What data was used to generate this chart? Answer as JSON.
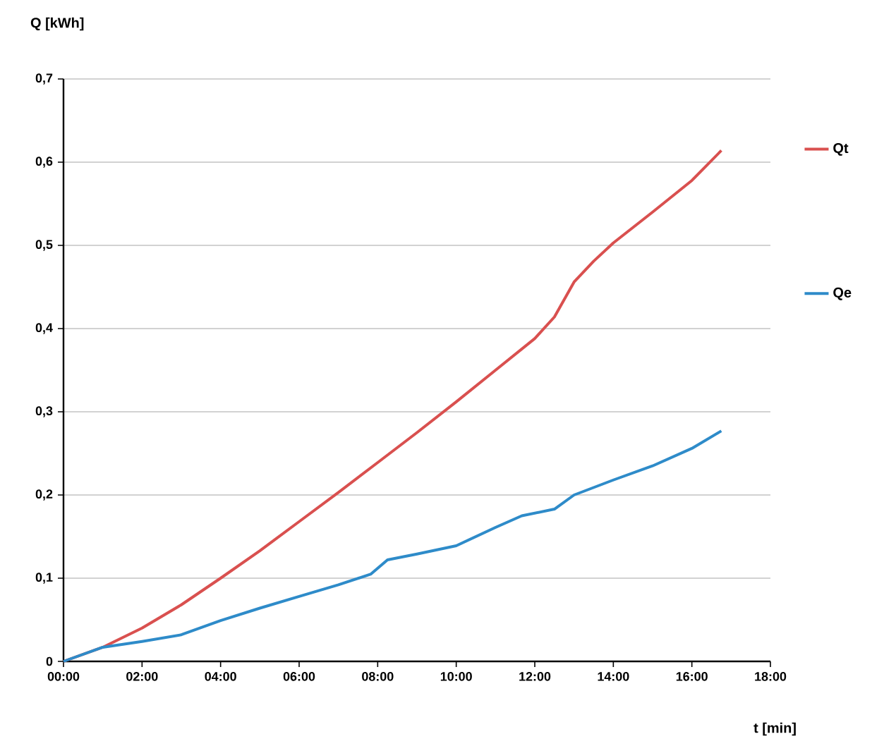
{
  "chart_data": {
    "type": "line",
    "xlabel": "t [min]",
    "ylabel": "Q [kWh]",
    "xlim": [
      0,
      18
    ],
    "ylim": [
      0,
      0.7
    ],
    "xticks": [
      {
        "value": 0,
        "label": "00:00"
      },
      {
        "value": 2,
        "label": "02:00"
      },
      {
        "value": 4,
        "label": "04:00"
      },
      {
        "value": 6,
        "label": "06:00"
      },
      {
        "value": 8,
        "label": "08:00"
      },
      {
        "value": 10,
        "label": "10:00"
      },
      {
        "value": 12,
        "label": "12:00"
      },
      {
        "value": 14,
        "label": "14:00"
      },
      {
        "value": 16,
        "label": "16:00"
      },
      {
        "value": 18,
        "label": "18:00"
      }
    ],
    "yticks": [
      0,
      {
        "value": 0.1,
        "label": "0,1"
      },
      {
        "value": 0.2,
        "label": "0,2"
      },
      {
        "value": 0.3,
        "label": "0,3"
      },
      {
        "value": 0.4,
        "label": "0,4"
      },
      {
        "value": 0.5,
        "label": "0,5"
      },
      {
        "value": 0.6,
        "label": "0,6"
      },
      {
        "value": 0.7,
        "label": "0,7"
      }
    ],
    "grid": "y",
    "legend": "right",
    "marker": "none",
    "line_style": "solid",
    "series": [
      {
        "name": "Qt",
        "color": "#d9504f",
        "x": [
          0,
          1,
          2,
          3,
          4,
          5,
          6,
          7,
          8,
          9,
          10,
          11,
          12,
          12.5,
          13,
          13.5,
          14,
          15,
          16,
          16.75
        ],
        "values": [
          0,
          0.017,
          0.04,
          0.068,
          0.1,
          0.133,
          0.168,
          0.203,
          0.239,
          0.275,
          0.312,
          0.35,
          0.388,
          0.414,
          0.456,
          0.481,
          0.503,
          0.54,
          0.578,
          0.614
        ]
      },
      {
        "name": "Qe",
        "color": "#2e8bc9",
        "x": [
          0,
          1,
          2,
          3,
          4,
          5,
          6,
          7,
          7.83,
          8.25,
          9,
          10,
          11,
          11.67,
          12.5,
          13,
          14,
          15,
          16,
          16.75
        ],
        "values": [
          0,
          0.017,
          0.024,
          0.032,
          0.049,
          0.064,
          0.078,
          0.092,
          0.105,
          0.122,
          0.129,
          0.139,
          0.161,
          0.175,
          0.183,
          0.2,
          0.218,
          0.235,
          0.256,
          0.277
        ]
      }
    ]
  }
}
